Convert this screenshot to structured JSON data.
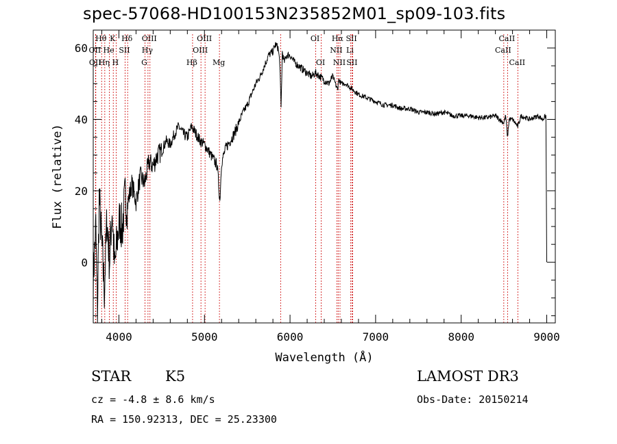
{
  "title": "spec-57068-HD100153N235852M01_sp09-103.fits",
  "info": {
    "object_class": "STAR",
    "subclass": "K5",
    "survey": "LAMOST DR3",
    "cz": "cz = -4.8 ± 8.6 km/s",
    "obs_date": "Obs-Date: 20150214",
    "coords": "RA = 150.92313, DEC =  25.23300"
  },
  "chart_data": {
    "type": "line",
    "title": "spec-57068-HD100153N235852M01_sp09-103.fits",
    "xlabel": "Wavelength (Å)",
    "ylabel": "Flux (relative)",
    "xlim": [
      3700,
      9100
    ],
    "ylim": [
      -17,
      65
    ],
    "xticks": [
      4000,
      5000,
      6000,
      7000,
      8000,
      9000
    ],
    "yticks": [
      0,
      20,
      40,
      60
    ],
    "grid": false,
    "series": [
      {
        "name": "",
        "x": [
          3700,
          3730,
          3750,
          3770,
          3800,
          3830,
          3860,
          3890,
          3920,
          3950,
          3980,
          4010,
          4040,
          4070,
          4100,
          4150,
          4200,
          4250,
          4300,
          4350,
          4400,
          4450,
          4500,
          4550,
          4600,
          4650,
          4700,
          4750,
          4800,
          4850,
          4900,
          4950,
          5000,
          5050,
          5100,
          5150,
          5180,
          5200,
          5250,
          5300,
          5350,
          5400,
          5450,
          5500,
          5550,
          5600,
          5650,
          5700,
          5750,
          5800,
          5830,
          5860,
          5880,
          5895,
          5910,
          5930,
          5960,
          6000,
          6050,
          6100,
          6150,
          6200,
          6250,
          6300,
          6350,
          6400,
          6450,
          6500,
          6560,
          6563,
          6570,
          6600,
          6650,
          6700,
          6750,
          6800,
          6900,
          7000,
          7100,
          7200,
          7300,
          7400,
          7500,
          7600,
          7700,
          7800,
          7900,
          8000,
          8100,
          8200,
          8300,
          8400,
          8498,
          8520,
          8542,
          8560,
          8600,
          8662,
          8700,
          8800,
          8900,
          8950,
          8990,
          9000
        ],
        "y": [
          -5,
          10,
          -14,
          18,
          5,
          -8,
          12,
          0,
          15,
          -2,
          6,
          12,
          9,
          18,
          16,
          22,
          17,
          24,
          22,
          28,
          27,
          30,
          31,
          34,
          33,
          36,
          38,
          36,
          35,
          38,
          36,
          34,
          33,
          31,
          29,
          27,
          17,
          28,
          32,
          34,
          36,
          39,
          42,
          44,
          47,
          50,
          52,
          55,
          58,
          59,
          61,
          60,
          56,
          43,
          59,
          56,
          58,
          58,
          56,
          55,
          54,
          53,
          52,
          53,
          52,
          51,
          50,
          52,
          48,
          51,
          51,
          50,
          50,
          49,
          48,
          47,
          46,
          45,
          44,
          44,
          43,
          43,
          42,
          42,
          41.5,
          42,
          41,
          41,
          41,
          40.5,
          40.5,
          41,
          39,
          41,
          35,
          40,
          40,
          38,
          41,
          40,
          41,
          40,
          41,
          0
        ]
      }
    ],
    "lines": [
      {
        "label": "Hθ",
        "x": 3798,
        "row": 0
      },
      {
        "label": "K",
        "x": 3934,
        "row": 0
      },
      {
        "label": "Hδ",
        "x": 4102,
        "row": 0
      },
      {
        "label": "OIII",
        "x": 4363,
        "row": 0
      },
      {
        "label": "OIII",
        "x": 5007,
        "row": 0
      },
      {
        "label": "OI",
        "x": 6300,
        "row": 0
      },
      {
        "label": "Hα",
        "x": 6563,
        "row": 0
      },
      {
        "label": "SII",
        "x": 6725,
        "row": 0
      },
      {
        "label": "CaII",
        "x": 8542,
        "row": 0
      },
      {
        "label": "OII",
        "x": 3727,
        "row": 1
      },
      {
        "label": "He",
        "x": 3889,
        "row": 1
      },
      {
        "label": "SII",
        "x": 4072,
        "row": 1
      },
      {
        "label": "Hγ",
        "x": 4340,
        "row": 1
      },
      {
        "label": "OIII",
        "x": 4959,
        "row": 1
      },
      {
        "label": "NII",
        "x": 6548,
        "row": 1
      },
      {
        "label": "Li",
        "x": 6708,
        "row": 1
      },
      {
        "label": "CaII",
        "x": 8498,
        "row": 1
      },
      {
        "label": "OII",
        "x": 3730,
        "row": 2
      },
      {
        "label": "Hη",
        "x": 3835,
        "row": 2
      },
      {
        "label": "H",
        "x": 3968,
        "row": 2
      },
      {
        "label": "G",
        "x": 4305,
        "row": 2
      },
      {
        "label": "Hβ",
        "x": 4861,
        "row": 2
      },
      {
        "label": "Mg",
        "x": 5175,
        "row": 2
      },
      {
        "label": "OI",
        "x": 6364,
        "row": 2
      },
      {
        "label": "NII",
        "x": 6584,
        "row": 2
      },
      {
        "label": "SII",
        "x": 6731,
        "row": 2
      },
      {
        "label": "CaII",
        "x": 8662,
        "row": 2
      },
      {
        "label": "",
        "x": 5890,
        "row": -1
      }
    ],
    "colors": {
      "spectrum": "#000000",
      "line_markers": "#cc0000"
    }
  }
}
